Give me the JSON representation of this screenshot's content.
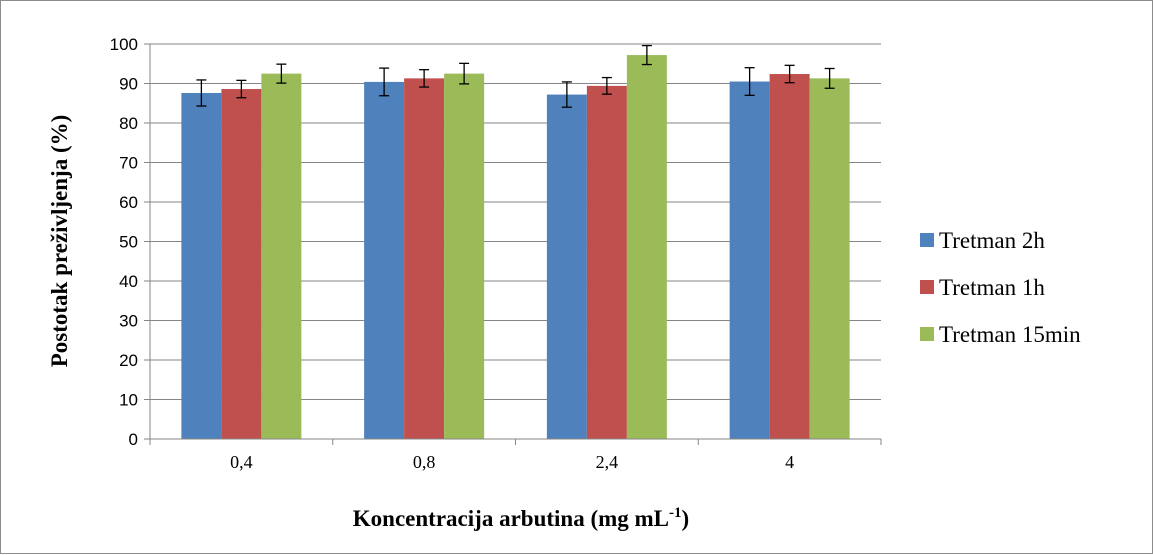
{
  "chart_data": {
    "type": "bar",
    "title": "",
    "xlabel": "Koncentracija arbutina (mg mL",
    "xlabel_superscript": "-1",
    "xlabel_suffix": ")",
    "ylabel": "Postotak preživljenja (%)",
    "ylim": [
      0,
      100
    ],
    "yticks": [
      0,
      10,
      20,
      30,
      40,
      50,
      60,
      70,
      80,
      90,
      100
    ],
    "grid": true,
    "legend_position": "right",
    "categories": [
      "0,4",
      "0,8",
      "2,4",
      "4"
    ],
    "series": [
      {
        "name": "Tretman 2h",
        "color": "#4f81bd",
        "values": [
          87.6,
          90.4,
          87.2,
          90.5
        ],
        "errors": [
          3.3,
          3.5,
          3.2,
          3.5
        ]
      },
      {
        "name": "Tretman 1h",
        "color": "#c0504d",
        "values": [
          88.6,
          91.3,
          89.4,
          92.4
        ],
        "errors": [
          2.2,
          2.2,
          2.1,
          2.2
        ]
      },
      {
        "name": "Tretman 15min",
        "color": "#9bbb59",
        "values": [
          92.5,
          92.5,
          97.2,
          91.3
        ],
        "errors": [
          2.4,
          2.6,
          2.4,
          2.5
        ]
      }
    ]
  }
}
